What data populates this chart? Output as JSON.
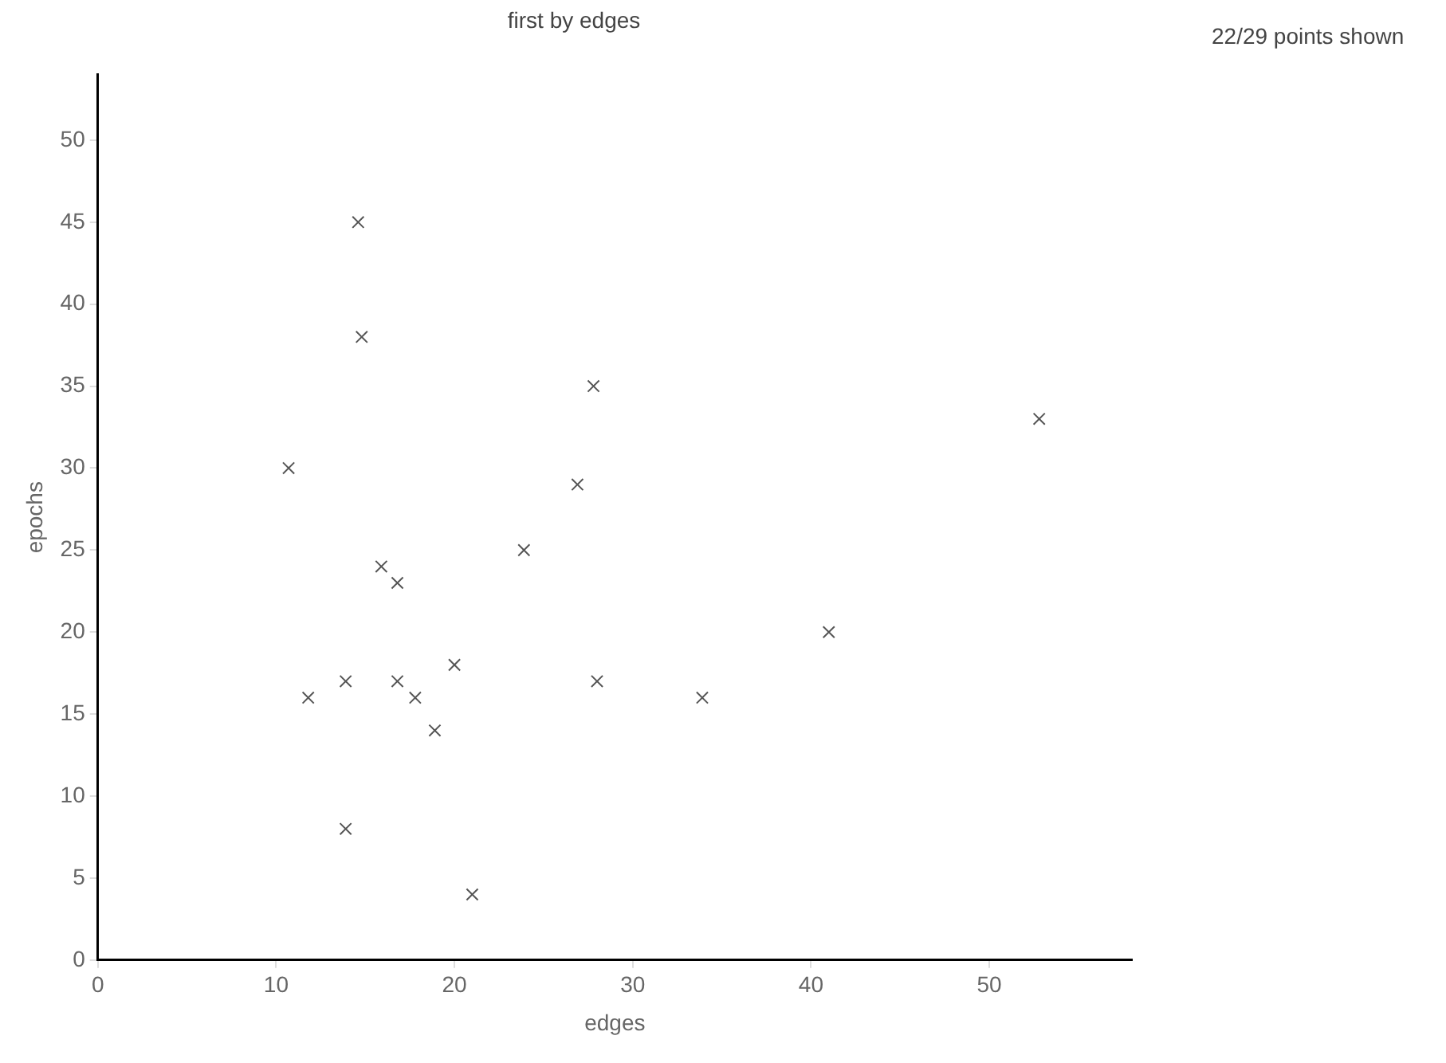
{
  "chart_data": {
    "type": "scatter",
    "title": "first by edges",
    "xlabel": "edges",
    "ylabel": "epochs",
    "annotations": [
      "22/29 points shown"
    ],
    "xlim": [
      0,
      58
    ],
    "ylim": [
      0,
      54
    ],
    "xticks": [
      0,
      10,
      20,
      30,
      40,
      50
    ],
    "yticks": [
      0,
      5,
      10,
      15,
      20,
      25,
      30,
      35,
      40,
      45,
      50
    ],
    "grid": false,
    "legend": false,
    "marker": "cross",
    "series": [
      {
        "color": "#555555",
        "x": [
          11.8,
          13.9,
          15.9,
          16.8,
          16.8,
          17.8,
          20,
          18.9,
          13.9,
          21,
          23.9,
          28,
          33.9,
          14.6,
          14.8,
          27.8,
          10.7,
          26.9,
          52.8,
          41
        ],
        "values": [
          16,
          17,
          24,
          23,
          17,
          16,
          18,
          14,
          8,
          4,
          25,
          17,
          16,
          45,
          38,
          35,
          30,
          29,
          33,
          20
        ]
      }
    ]
  }
}
